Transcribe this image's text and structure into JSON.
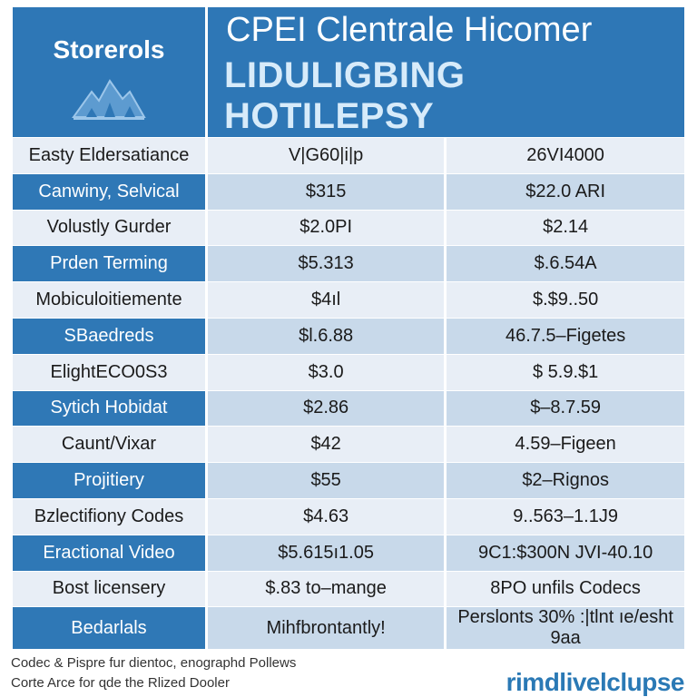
{
  "header": {
    "brand": "Storerols",
    "logo_icon": "mountain-logo-icon",
    "title": "CPEI Clentrale Hicomer",
    "subtitle": "LIDULIGBING HOTILEPSY"
  },
  "rows": [
    [
      "Easty Eldersatiance",
      "V|G60|i|p",
      "26VI4000"
    ],
    [
      "Canwiny, Selvical",
      "$315",
      "$22.0 ARI"
    ],
    [
      "Volustly Gurder",
      "$2.0PI",
      "$2.14"
    ],
    [
      "Prden Terming",
      "$5.313",
      "$.6.54A"
    ],
    [
      "Mobiculoitiemente",
      "$4ıl",
      "$.$9..50"
    ],
    [
      "SBaedreds",
      "$l.6.88",
      "46.7.5–Figetes"
    ],
    [
      "ElightECO0S3",
      "$3.0",
      "$ 5.9.$1"
    ],
    [
      "Sytich Hobidat",
      "$2.86",
      "$–8.7.59"
    ],
    [
      "Caunt/Vixar",
      "$42",
      "4.59–Figeen"
    ],
    [
      "Projitiery",
      "$55",
      "$2–Rignos"
    ],
    [
      "Bzlectifiony Codes",
      "$4.63",
      "9..563–1.1J9"
    ],
    [
      "Eractional Video",
      "$5.615ı1.05",
      "9C1:$300N JVI-40.10"
    ],
    [
      "Bost licensery",
      "$.83 to–mange",
      "8PO unfils Codecs"
    ],
    [
      "Bedarlals",
      "Mihfbrontantly!",
      "Perslonts 30% :|tlnt ıe/esht 9aa"
    ]
  ],
  "footer": {
    "note_line1": "Codec & Pispre fur dientoc, enographd Pollews",
    "note_line2": "Corte Arce for ɋde the Rlized Dooler",
    "brand": "rimdlivelclupse"
  },
  "colors": {
    "header_bg": "#2e77b6",
    "accent_cell": "#2f78b6",
    "row_light": "#e8eef6",
    "row_mid": "#c8d9ea"
  }
}
